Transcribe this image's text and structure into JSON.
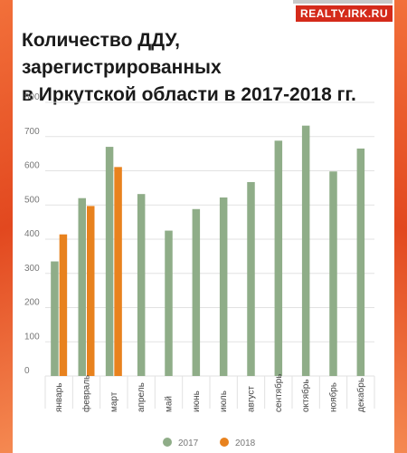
{
  "header": {
    "title_line1": "Количество ДДУ, зарегистрированных",
    "title_line2": "в Иркутской области  в 2017-2018 гг.",
    "logo_text": "REALTY.IRK.RU"
  },
  "colors": {
    "series_2017": "#8fad88",
    "series_2018": "#e8821e",
    "grid": "#e2e2e2"
  },
  "chart_data": {
    "type": "bar",
    "title": "Количество ДДУ, зарегистрированных в Иркутской области  в 2017-2018 гг.",
    "categories": [
      "январь",
      "февраль",
      "март",
      "апрель",
      "май",
      "июнь",
      "июль",
      "август",
      "сентябрь",
      "октябрь",
      "ноябрь",
      "декабрь"
    ],
    "series": [
      {
        "name": "2017",
        "values": [
          335,
          520,
          670,
          532,
          425,
          488,
          522,
          567,
          688,
          732,
          598,
          665
        ]
      },
      {
        "name": "2018",
        "values": [
          414,
          497,
          611,
          null,
          null,
          null,
          null,
          null,
          null,
          null,
          null,
          null
        ]
      }
    ],
    "yticks": [
      0,
      100,
      200,
      300,
      400,
      500,
      600,
      700,
      800
    ],
    "ylim": [
      0,
      800
    ],
    "grid": true,
    "legend": "bottom"
  }
}
